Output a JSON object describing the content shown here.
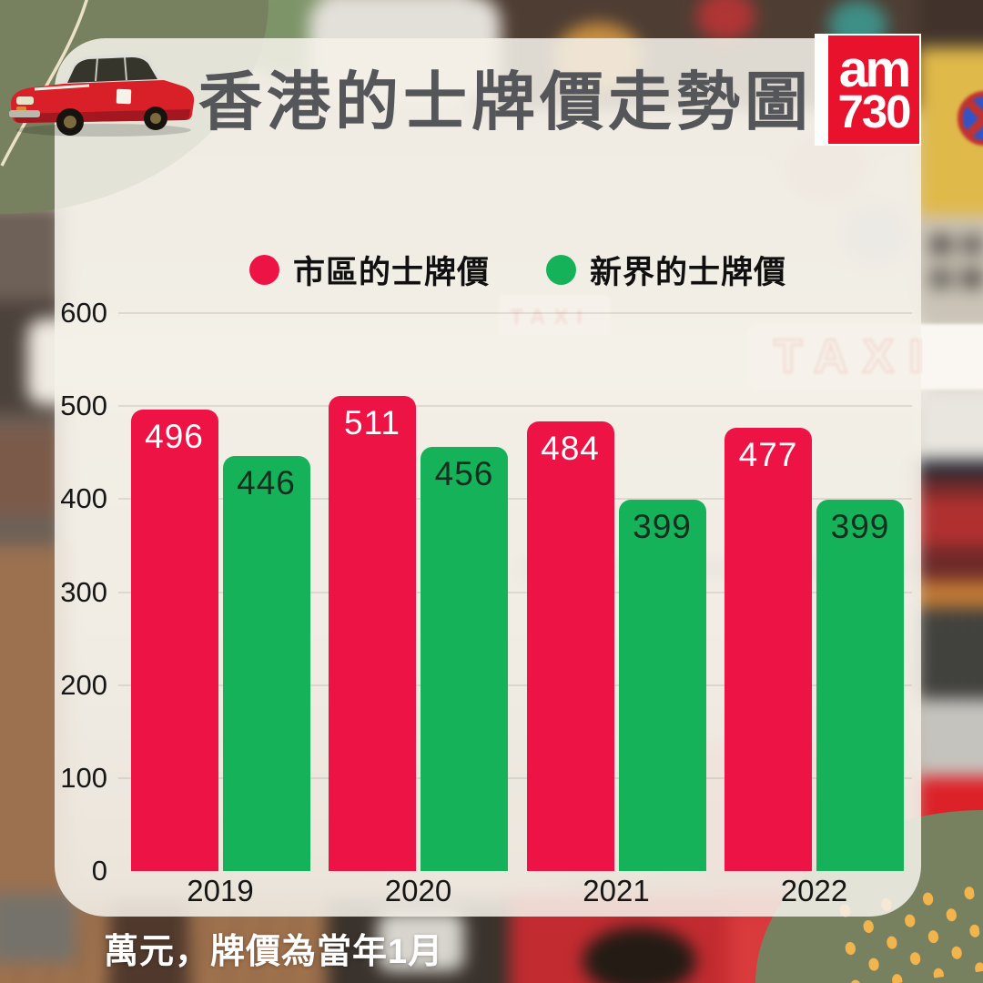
{
  "chart_data": {
    "type": "bar",
    "title": "香港的士牌價走勢圖",
    "categories": [
      "2019",
      "2020",
      "2021",
      "2022"
    ],
    "series": [
      {
        "name": "市區的士牌價",
        "color": "#ee1345",
        "label_color": "#ffffff",
        "values": [
          496,
          511,
          484,
          477
        ]
      },
      {
        "name": "新界的士牌價",
        "color": "#16b259",
        "label_color": "#152e1f",
        "values": [
          446,
          456,
          399,
          399
        ]
      }
    ],
    "ylim": [
      0,
      600
    ],
    "yticks": [
      0,
      100,
      200,
      300,
      400,
      500,
      600
    ],
    "grid": true,
    "legend_position": "top",
    "note": "萬元，牌價為當年1月"
  },
  "logo": {
    "line1": "am",
    "line2": "730"
  },
  "background": {
    "taxi_sign_text": "TAXI",
    "taxi_sign_small_text": "TAXI"
  },
  "colors": {
    "olive": "#78815f",
    "card": "rgba(245,241,233,0.87)",
    "dot_yellow": "#f2b44c",
    "title_text": "#55565a",
    "brand_red": "#e8122d"
  }
}
